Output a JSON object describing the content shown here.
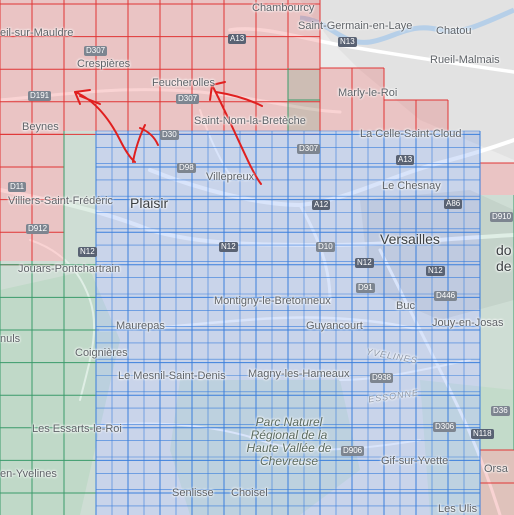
{
  "map": {
    "places": {
      "chambourcy": "Chambourcy",
      "saint_germain": "Saint-Germain-en-Laye",
      "chatou": "Chatou",
      "mauldre": "eil-sur-Mauldre",
      "crespieres": "Crespières",
      "rueil": "Rueil-Malmais",
      "feucherolles": "Feucherolles",
      "marly": "Marly-le-Roi",
      "beynes": "Beynes",
      "saint_nom": "Saint-Nom-la-Bretèche",
      "celle": "La Celle-Saint-Cloud",
      "villepreux": "Villepreux",
      "chesnay": "Le Chesnay",
      "villiers": "Villiers-Saint-Frédéric",
      "plaisir": "Plaisir",
      "versailles": "Versailles",
      "do": "do",
      "de": "de",
      "jouars": "Jouars-Pontchartrain",
      "montigny": "Montigny-le-Bretonneux",
      "buc": "Buc",
      "jouy": "Jouy-en-Josas",
      "nuls": "nuls",
      "maurepas": "Maurepas",
      "guyancourt": "Guyancourt",
      "coignieres": "Coignières",
      "mesnil": "Le Mesnil-Saint-Denis",
      "magny": "Magny-les-Hameaux",
      "yvelines_region": "YVELINES",
      "essonne_region": "ESSONNE",
      "parc": "Parc Naturel Régional de la Haute Vallée de Chevreuse",
      "essarts": "Les Essarts-le-Roi",
      "gif": "Gif-sur-Yvette",
      "orsa": "Orsa",
      "en_yvelines": "en-Yvelines",
      "senlisse": "Senlisse",
      "choisel": "Choisel",
      "ulis": "Les Ulis"
    },
    "roads": {
      "d307_a": "D307",
      "a13_a": "A13",
      "n13": "N13",
      "d191": "D191",
      "d307_b": "D307",
      "d30": "D30",
      "d307_c": "D307",
      "a13_b": "A13",
      "d98": "D98",
      "d11": "D11",
      "a12": "A12",
      "a86": "A86",
      "d910": "D910",
      "d912": "D912",
      "n12_a": "N12",
      "n12_b": "N12",
      "d10": "D10",
      "n12_c": "N12",
      "n12_d": "N12",
      "d91": "D91",
      "d446": "D446",
      "d938": "D938",
      "d36": "D36",
      "d306": "D306",
      "n118": "N118",
      "d906": "D906"
    },
    "colors": {
      "covered_blue": "#3b7fdc",
      "red_grid": "#e03535",
      "green_grid": "#3a9a6a",
      "annotation_red": "#e02020"
    }
  }
}
